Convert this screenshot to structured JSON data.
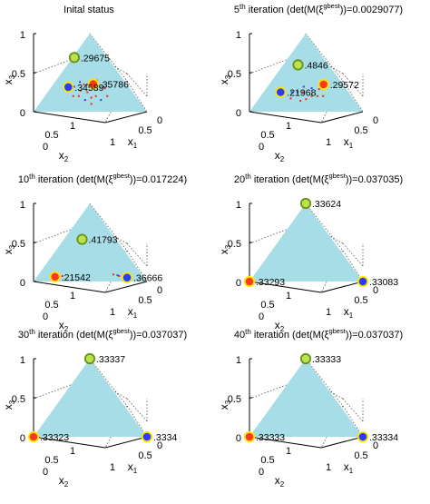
{
  "chart_data": [
    {
      "type": "scatter",
      "title": "Inital status",
      "title_parts": null,
      "labels": [
        ".29675",
        ".35786",
        ".34589"
      ],
      "points": [
        [
          0.015,
          0.291,
          0.694
        ],
        [
          0.35,
          0.295,
          0.355
        ],
        [
          0.15,
          0.535,
          0.315
        ]
      ],
      "scatter": [
        [
          0.3,
          0.35,
          0.35
        ],
        [
          0.28,
          0.45,
          0.27
        ],
        [
          0.4,
          0.3,
          0.3
        ],
        [
          0.22,
          0.4,
          0.38
        ],
        [
          0.35,
          0.4,
          0.25
        ],
        [
          0.45,
          0.35,
          0.2
        ],
        [
          0.38,
          0.47,
          0.15
        ],
        [
          0.25,
          0.55,
          0.2
        ],
        [
          0.48,
          0.22,
          0.3
        ],
        [
          0.33,
          0.3,
          0.37
        ],
        [
          0.55,
          0.25,
          0.2
        ],
        [
          0.3,
          0.5,
          0.2
        ],
        [
          0.2,
          0.48,
          0.32
        ],
        [
          0.42,
          0.4,
          0.18
        ],
        [
          0.36,
          0.24,
          0.4
        ],
        [
          0.52,
          0.33,
          0.15
        ],
        [
          0.27,
          0.38,
          0.35
        ],
        [
          0.46,
          0.44,
          0.1
        ]
      ],
      "xlabel": "x1",
      "ylabel": "x2",
      "zlabel": "x3",
      "ticks": {
        "x": [
          "0",
          "0.5",
          "1"
        ],
        "y": [
          "0",
          "0.5",
          "1"
        ],
        "z": [
          "0",
          "0.5",
          "1"
        ]
      }
    },
    {
      "type": "scatter",
      "title": null,
      "title_parts": {
        "n": "5",
        "sup": "th",
        "pre": " iteration (det(M(",
        "xi": "ξ",
        "gbest": "gbest",
        "post": "))=0.0029077)"
      },
      "labels": [
        ".4846",
        ".29572",
        ".21968"
      ],
      "points": [
        [
          0.13,
          0.27,
          0.6
        ],
        [
          0.48,
          0.17,
          0.35
        ],
        [
          0.15,
          0.6,
          0.25
        ]
      ],
      "scatter": [
        [
          0.4,
          0.3,
          0.3
        ],
        [
          0.35,
          0.4,
          0.25
        ],
        [
          0.45,
          0.35,
          0.2
        ],
        [
          0.3,
          0.45,
          0.25
        ],
        [
          0.5,
          0.3,
          0.2
        ],
        [
          0.42,
          0.42,
          0.16
        ],
        [
          0.25,
          0.5,
          0.25
        ],
        [
          0.55,
          0.25,
          0.2
        ],
        [
          0.38,
          0.48,
          0.14
        ],
        [
          0.32,
          0.36,
          0.32
        ],
        [
          0.47,
          0.24,
          0.29
        ],
        [
          0.28,
          0.55,
          0.17
        ]
      ],
      "xlabel": "x1",
      "ylabel": "x2",
      "zlabel": "x3",
      "ticks": {
        "x": [
          "0",
          "0.5",
          "1"
        ],
        "y": [
          "0",
          "0.5",
          "1"
        ],
        "z": [
          "0",
          "0.5",
          "1"
        ]
      }
    },
    {
      "type": "scatter",
      "title": null,
      "title_parts": {
        "n": "10",
        "sup": "th",
        "pre": " iteration (det(M(",
        "xi": "ξ",
        "gbest": "gbest",
        "post": "))=0.017224)"
      },
      "labels": [
        ".41793",
        ".21542",
        ".36666"
      ],
      "points": [
        [
          0.16,
          0.3,
          0.54
        ],
        [
          0.16,
          0.78,
          0.06
        ],
        [
          0.8,
          0.15,
          0.05
        ]
      ],
      "scatter": [
        [
          0.7,
          0.22,
          0.08
        ],
        [
          0.75,
          0.17,
          0.08
        ],
        [
          0.66,
          0.25,
          0.09
        ],
        [
          0.78,
          0.14,
          0.08
        ],
        [
          0.2,
          0.74,
          0.06
        ],
        [
          0.22,
          0.71,
          0.07
        ],
        [
          0.17,
          0.76,
          0.07
        ],
        [
          0.72,
          0.21,
          0.07
        ]
      ],
      "xlabel": "x1",
      "ylabel": "x2",
      "zlabel": "x3",
      "ticks": {
        "x": [
          "0",
          "0.5",
          "1"
        ],
        "y": [
          "0",
          "0.5",
          "1"
        ],
        "z": [
          "0",
          "0.5",
          "1"
        ]
      }
    },
    {
      "type": "scatter",
      "title": null,
      "title_parts": {
        "n": "20",
        "sup": "th",
        "pre": " iteration (det(M(",
        "xi": "ξ",
        "gbest": "gbest",
        "post": "))=0.037035)"
      },
      "labels": [
        ".33624",
        ".33293",
        ".33083"
      ],
      "points": [
        [
          0.0,
          0.0,
          1.0
        ],
        [
          0.0,
          1.0,
          0.0
        ],
        [
          1.0,
          0.0,
          0.0
        ]
      ],
      "scatter": [],
      "xlabel": "x1",
      "ylabel": "x2",
      "zlabel": "x3",
      "ticks": {
        "x": [
          "0",
          "0.5",
          "1"
        ],
        "y": [
          "0",
          "0.5",
          "1"
        ],
        "z": [
          "0",
          "0.5",
          "1"
        ]
      }
    },
    {
      "type": "scatter",
      "title": null,
      "title_parts": {
        "n": "30",
        "sup": "th",
        "pre": " iteration (det(M(",
        "xi": "ξ",
        "gbest": "gbest",
        "post": "))=0.037037)"
      },
      "labels": [
        ".33337",
        ".33323",
        ".3334"
      ],
      "points": [
        [
          0.0,
          0.0,
          1.0
        ],
        [
          0.0,
          1.0,
          0.0
        ],
        [
          1.0,
          0.0,
          0.0
        ]
      ],
      "scatter": [],
      "xlabel": "x1",
      "ylabel": "x2",
      "zlabel": "x3",
      "ticks": {
        "x": [
          "0",
          "0.5",
          "1"
        ],
        "y": [
          "0",
          "0.5",
          "1"
        ],
        "z": [
          "0",
          "0.5",
          "1"
        ]
      }
    },
    {
      "type": "scatter",
      "title": null,
      "title_parts": {
        "n": "40",
        "sup": "th",
        "pre": " iteration (det(M(",
        "xi": "ξ",
        "gbest": "gbest",
        "post": "))=0.037037)"
      },
      "labels": [
        ".33333",
        ".33333",
        ".33334"
      ],
      "points": [
        [
          0.0,
          0.0,
          1.0
        ],
        [
          0.0,
          1.0,
          0.0
        ],
        [
          1.0,
          0.0,
          0.0
        ]
      ],
      "scatter": [],
      "xlabel": "x1",
      "ylabel": "x2",
      "zlabel": "x3",
      "ticks": {
        "x": [
          "0",
          "0.5",
          "1"
        ],
        "y": [
          "0",
          "0.5",
          "1"
        ],
        "z": [
          "0",
          "0.5",
          "1"
        ]
      }
    }
  ],
  "colors": {
    "simplex": "#a6dde6",
    "top_marker": "#b9e34c",
    "best_marker": "#ff3a1a",
    "best_marker_ring": "#ffe600",
    "left_marker": "#2a3cff",
    "left_marker_ring": "#ffe600",
    "particles_red": "#ff2020",
    "particles_blue": "#2a3cff",
    "grid": "#555555"
  },
  "grid": "on (dotted box)"
}
